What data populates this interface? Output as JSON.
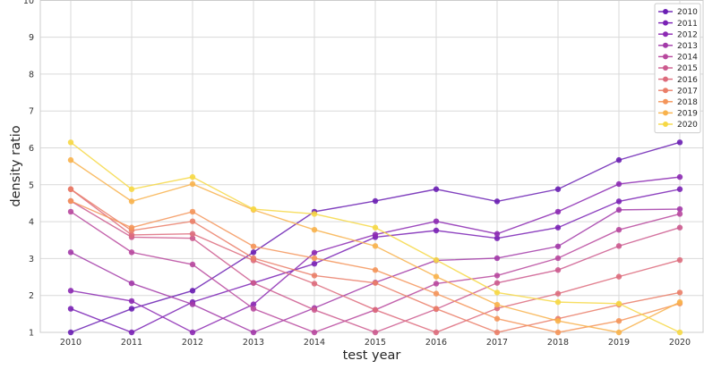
{
  "chart_data": {
    "type": "line",
    "xlabel": "test year",
    "ylabel": "density ratio",
    "x": [
      2010,
      2011,
      2012,
      2013,
      2014,
      2015,
      2016,
      2017,
      2018,
      2019,
      2020
    ],
    "xticks": [
      "2010",
      "2011",
      "2012",
      "2013",
      "2014",
      "2015",
      "2016",
      "2017",
      "2018",
      "2019",
      "2020"
    ],
    "yticks": [
      "1",
      "2",
      "3",
      "4",
      "5",
      "6",
      "7",
      "8",
      "9",
      "10"
    ],
    "ylim": [
      1,
      10
    ],
    "grid": true,
    "legend_position": "top-right",
    "series": [
      {
        "name": "2010",
        "color": "#6a1fb3",
        "values": [
          1.0,
          1.64,
          2.13,
          3.17,
          4.27,
          4.56,
          4.88,
          4.55,
          4.88,
          5.67,
          6.15
        ]
      },
      {
        "name": "2011",
        "color": "#7a22b5",
        "values": [
          1.64,
          1.0,
          1.82,
          2.34,
          2.86,
          3.58,
          3.76,
          3.55,
          3.84,
          4.55,
          4.88
        ]
      },
      {
        "name": "2012",
        "color": "#8c2ab3",
        "values": [
          2.13,
          1.85,
          1.0,
          1.76,
          3.16,
          3.65,
          4.01,
          3.67,
          4.27,
          5.02,
          5.21
        ]
      },
      {
        "name": "2013",
        "color": "#a23aa8",
        "values": [
          3.17,
          2.33,
          1.76,
          1.0,
          1.66,
          2.35,
          2.95,
          3.01,
          3.33,
          4.32,
          4.34
        ]
      },
      {
        "name": "2014",
        "color": "#b8489e",
        "values": [
          4.27,
          3.17,
          2.84,
          1.64,
          1.0,
          1.61,
          2.32,
          2.54,
          3.01,
          3.78,
          4.21
        ]
      },
      {
        "name": "2015",
        "color": "#cc5a8e",
        "values": [
          4.56,
          3.58,
          3.55,
          2.34,
          1.61,
          1.0,
          1.63,
          2.34,
          2.69,
          3.34,
          3.84
        ]
      },
      {
        "name": "2016",
        "color": "#dd6b7c",
        "values": [
          4.88,
          3.64,
          3.67,
          2.95,
          2.32,
          1.61,
          1.0,
          1.65,
          2.05,
          2.51,
          2.96
        ]
      },
      {
        "name": "2017",
        "color": "#ea7e68",
        "values": [
          4.88,
          3.76,
          4.01,
          3.01,
          2.54,
          2.34,
          1.64,
          1.0,
          1.37,
          1.75,
          2.08
        ]
      },
      {
        "name": "2018",
        "color": "#f4955a",
        "values": [
          4.56,
          3.84,
          4.27,
          3.33,
          3.01,
          2.69,
          2.05,
          1.37,
          1.0,
          1.31,
          1.78
        ]
      },
      {
        "name": "2019",
        "color": "#f8b24c",
        "values": [
          5.67,
          4.55,
          5.02,
          4.32,
          3.78,
          3.34,
          2.51,
          1.75,
          1.31,
          1.0,
          1.82
        ]
      },
      {
        "name": "2020",
        "color": "#f6d845",
        "values": [
          6.15,
          4.88,
          5.21,
          4.34,
          4.21,
          3.84,
          2.96,
          2.08,
          1.82,
          1.78,
          1.0
        ]
      }
    ]
  }
}
